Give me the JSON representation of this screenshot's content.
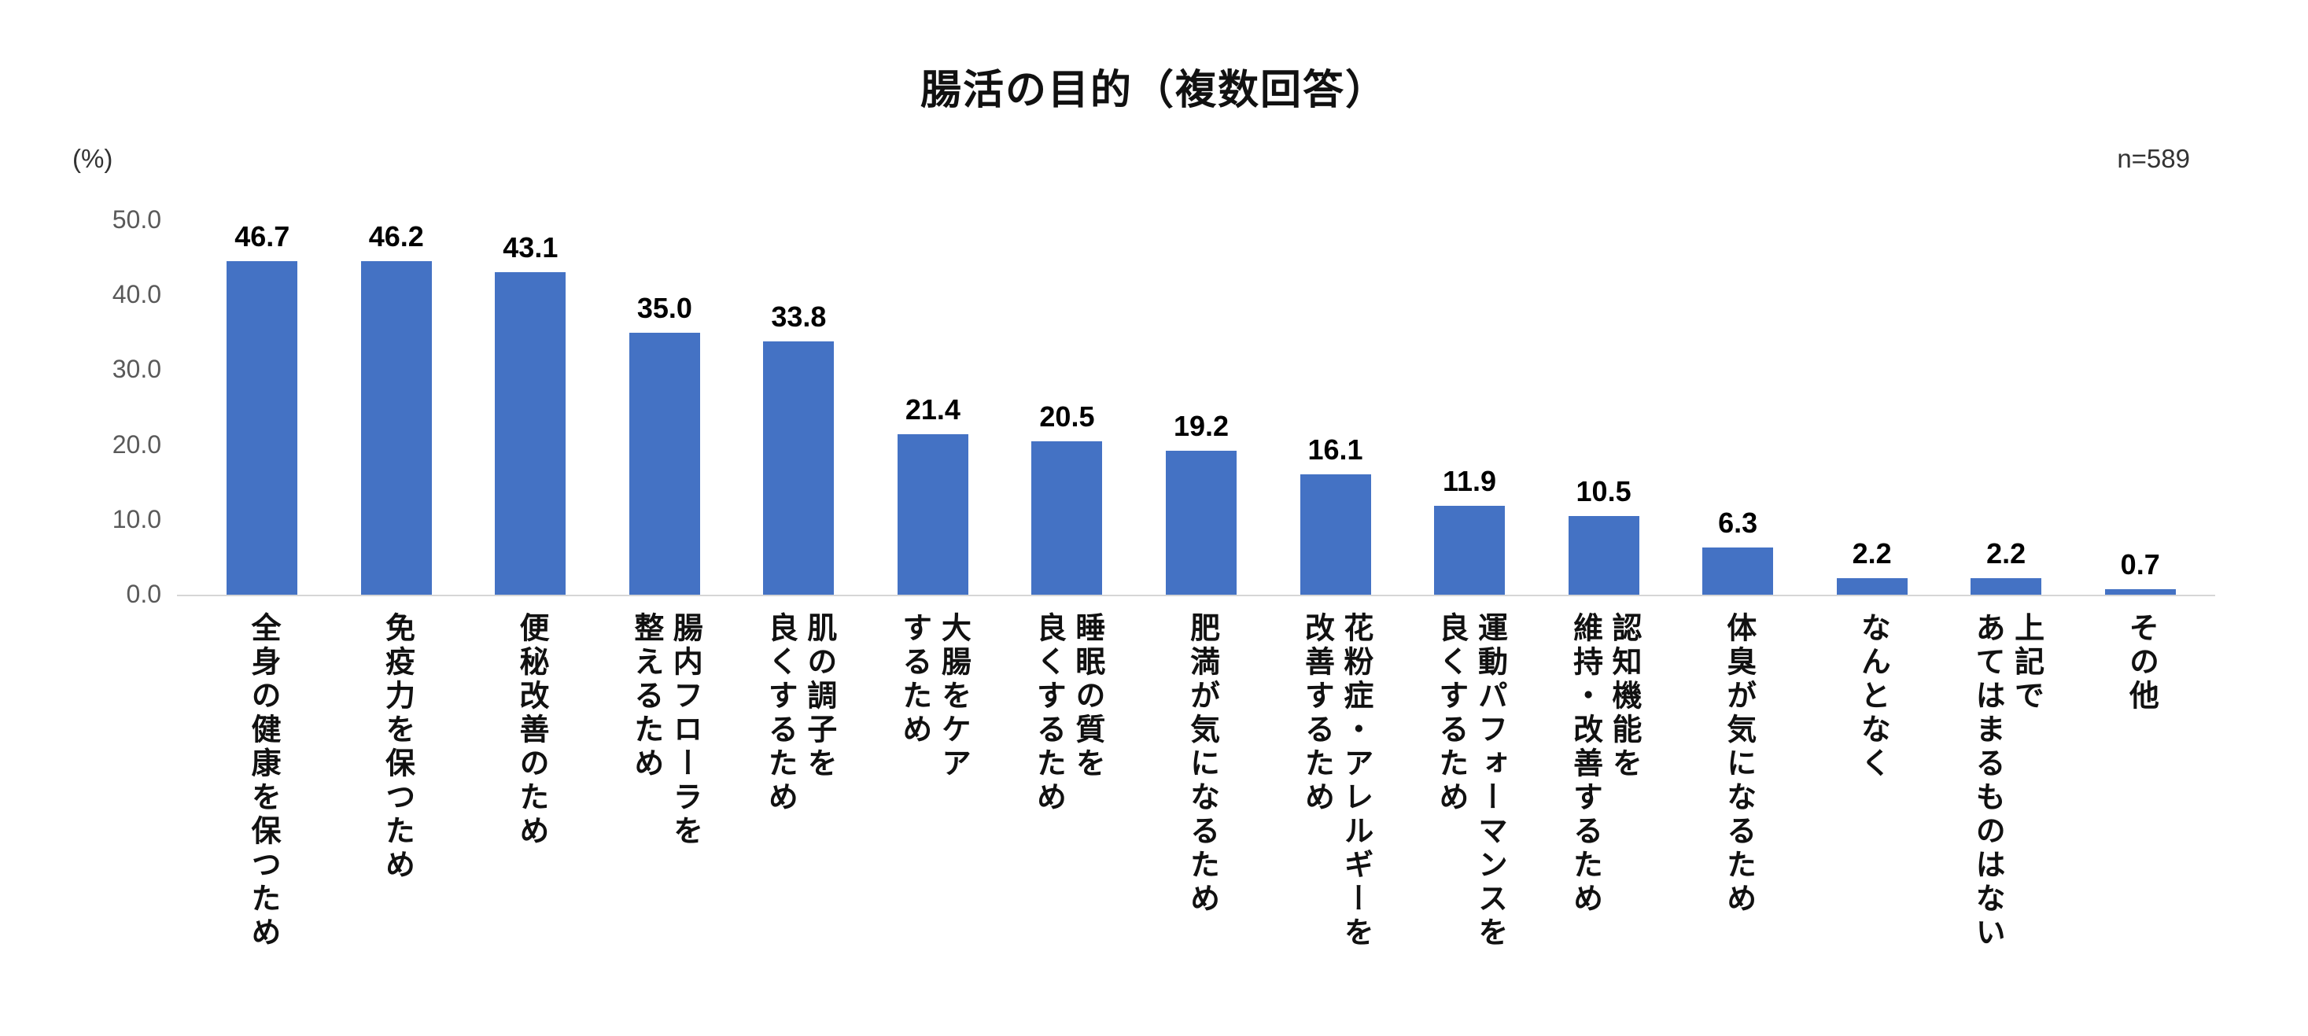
{
  "chart_data": {
    "type": "bar",
    "title": "腸活の目的（複数回答）",
    "sample_label": "n=589",
    "unit_label": "(%)",
    "ylim": [
      0,
      50
    ],
    "yticks": [
      "50.0",
      "40.0",
      "30.0",
      "20.0",
      "10.0",
      "0.0"
    ],
    "bar_color": "#4472C4",
    "baseline_color": "#d6d6d6",
    "legend": "none",
    "grid": "off",
    "categories": [
      "全身の健康を保つため",
      "免疫力を保つため",
      "便秘改善のため",
      "腸内フローラを整えるため",
      "肌の調子を良くするため",
      "大腸をケアするため",
      "睡眠の質を良くするため",
      "肥満が気になるため",
      "花粉症・アレルギーを改善するため",
      "運動パフォーマンスを良くするため",
      "認知機能を維持・改善するため",
      "体臭が気になるため",
      "なんとなく",
      "上記であてはまるものはない",
      "その他"
    ],
    "category_lines": [
      "全身の健康を保つため",
      "免疫力を保つため",
      "便秘改善のため",
      "腸内フローラを\n整えるため",
      "肌の調子を\n良くするため",
      "大腸をケア\nするため",
      "睡眠の質を\n良くするため",
      "肥満が気になるため",
      "花粉症・アレルギーを\n改善するため",
      "運動パフォーマンスを\n良くするため",
      "認知機能を\n維持・改善するため",
      "体臭が気になるため",
      "なんとなく",
      "上記で\nあてはまるものはない",
      "その他"
    ],
    "values": [
      46.7,
      46.2,
      43.1,
      35.0,
      33.8,
      21.4,
      20.5,
      19.2,
      16.1,
      11.9,
      10.5,
      6.3,
      2.2,
      2.2,
      0.7
    ],
    "value_labels": [
      "46.7",
      "46.2",
      "43.1",
      "35.0",
      "33.8",
      "21.4",
      "20.5",
      "19.2",
      "16.1",
      "11.9",
      "10.5",
      "6.3",
      "2.2",
      "2.2",
      "0.7"
    ]
  }
}
